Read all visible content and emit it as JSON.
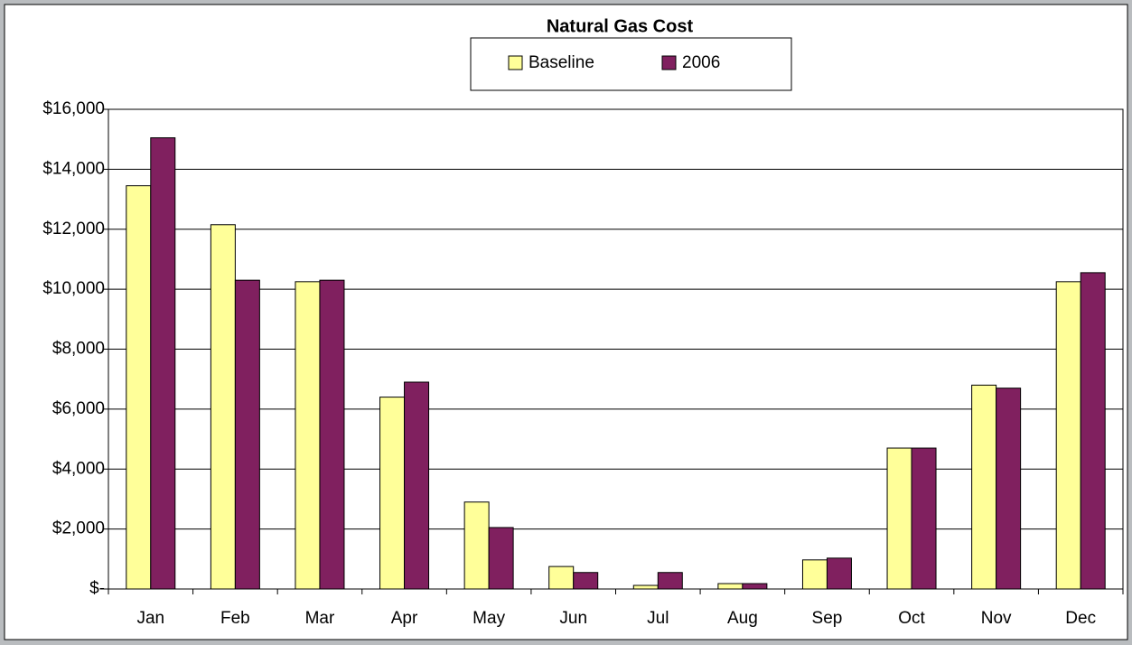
{
  "chart_data": {
    "type": "bar",
    "title": "Natural Gas Cost",
    "categories": [
      "Jan",
      "Feb",
      "Mar",
      "Apr",
      "May",
      "Jun",
      "Jul",
      "Aug",
      "Sep",
      "Oct",
      "Nov",
      "Dec"
    ],
    "series": [
      {
        "name": "Baseline",
        "color": "#ffff99",
        "values": [
          13450,
          12150,
          10250,
          6400,
          2900,
          750,
          120,
          180,
          970,
          4700,
          6800,
          10250
        ]
      },
      {
        "name": "2006",
        "color": "#80205f",
        "values": [
          15050,
          10300,
          10300,
          6900,
          2050,
          550,
          550,
          180,
          1030,
          4700,
          6700,
          10550
        ]
      }
    ],
    "ylim": [
      0,
      16000
    ],
    "yticks": [
      {
        "value": 0,
        "label": "$-"
      },
      {
        "value": 2000,
        "label": "$2,000"
      },
      {
        "value": 4000,
        "label": "$4,000"
      },
      {
        "value": 6000,
        "label": "$6,000"
      },
      {
        "value": 8000,
        "label": "$8,000"
      },
      {
        "value": 10000,
        "label": "$10,000"
      },
      {
        "value": 12000,
        "label": "$12,000"
      },
      {
        "value": 14000,
        "label": "$14,000"
      },
      {
        "value": 16000,
        "label": "$16,000"
      }
    ],
    "grid": true,
    "legend": "top"
  }
}
